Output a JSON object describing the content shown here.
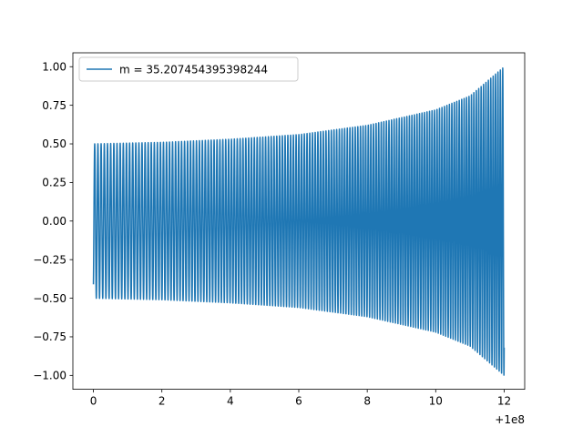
{
  "chart_data": {
    "type": "line",
    "title": "",
    "xlabel": "",
    "ylabel": "",
    "x_offset_text": "+1e8",
    "xlim": [
      -0.6,
      12.6
    ],
    "ylim": [
      -1.09,
      1.09
    ],
    "x_ticks": [
      0,
      2,
      4,
      6,
      8,
      10,
      12
    ],
    "x_tick_labels": [
      "0",
      "2",
      "4",
      "6",
      "8",
      "10",
      "12"
    ],
    "y_ticks": [
      1.0,
      0.75,
      0.5,
      0.25,
      0.0,
      -0.25,
      -0.5,
      -0.75,
      -1.0
    ],
    "y_tick_labels": [
      "1.00",
      "0.75",
      "0.50",
      "0.25",
      "0.00",
      "−0.25",
      "−0.50",
      "−0.75",
      "−1.00"
    ],
    "grid": false,
    "legend_position": "upper-left",
    "series": [
      {
        "name": "m = 35.207454395398244",
        "color": "#1f77b4",
        "description": "oscillation with growing amplitude (chirp)",
        "x_range": [
          0,
          12
        ],
        "amplitude_envelope": [
          {
            "x": 0,
            "amp": 0.5
          },
          {
            "x": 2,
            "amp": 0.51
          },
          {
            "x": 4,
            "amp": 0.53
          },
          {
            "x": 6,
            "amp": 0.56
          },
          {
            "x": 8,
            "amp": 0.62
          },
          {
            "x": 10,
            "amp": 0.72
          },
          {
            "x": 11,
            "amp": 0.81
          },
          {
            "x": 12,
            "amp": 1.0
          }
        ],
        "approx_cycles": 150,
        "start_value": -0.41
      }
    ]
  }
}
